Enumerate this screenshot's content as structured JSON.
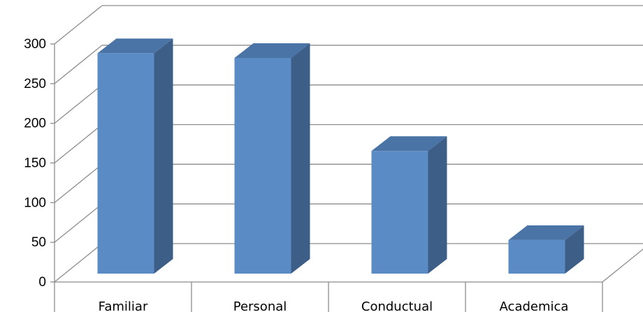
{
  "chart_data": {
    "type": "bar",
    "style": "3d-column",
    "categories": [
      "Familiar",
      "Personal",
      "Conductual",
      "Academica"
    ],
    "values": [
      282,
      276,
      157,
      43
    ],
    "ylim": [
      0,
      300
    ],
    "yticks": [
      0,
      50,
      100,
      150,
      200,
      250,
      300
    ],
    "grid": true,
    "legend": "none",
    "title": "",
    "xlabel": "",
    "ylabel": "",
    "colors": {
      "bar_front": "#5b8bc5",
      "bar_side": "#3c5e87",
      "bar_top": "#4a73a6",
      "grid": "#8c8c8c",
      "axis": "#8c8c8c"
    }
  }
}
